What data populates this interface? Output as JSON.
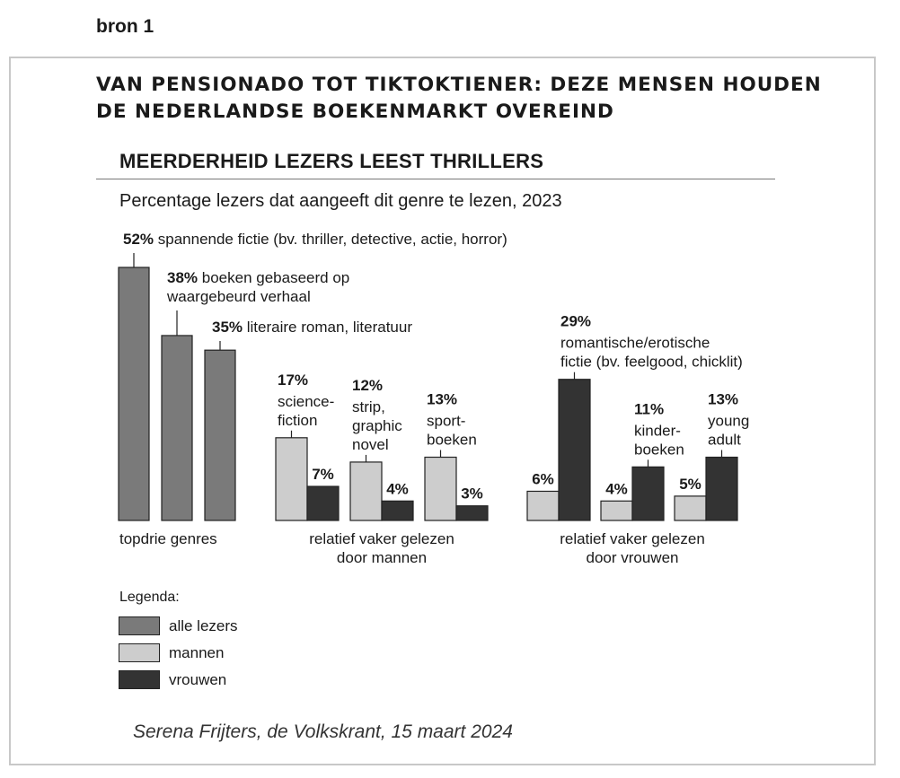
{
  "source_label": "bron 1",
  "headline": "VAN PENSIONADO TOT TIKTOKTIENER: DEZE MENSEN HOUDEN DE NEDERLANDSE BOEKENMARKT OVEREIND",
  "chart_data": {
    "type": "bar",
    "title": "MEERDERHEID LEZERS LEEST THRILLERS",
    "subtitle": "Percentage lezers dat aangeeft dit genre te lezen, 2023",
    "unit": "%",
    "groups": [
      {
        "label": "topdrie genres",
        "bars": [
          {
            "series": "alle lezers",
            "value": 52,
            "value_label": "52%",
            "genre": [
              "spannende fictie (bv. thriller, detective, actie, horror)"
            ]
          },
          {
            "series": "alle lezers",
            "value": 38,
            "value_label": "38%",
            "genre": [
              "boeken gebaseerd op",
              "waargebeurd verhaal"
            ]
          },
          {
            "series": "alle lezers",
            "value": 35,
            "value_label": "35%",
            "genre": [
              "literaire roman, literatuur"
            ]
          }
        ]
      },
      {
        "label": "relatief vaker gelezen door mannen",
        "label_lines": [
          "relatief vaker gelezen",
          "door mannen"
        ],
        "pairs": [
          {
            "genre": [
              "science-",
              "fiction"
            ],
            "mannen": 17,
            "mannen_label": "17%",
            "vrouwen": 7,
            "vrouwen_label": "7%"
          },
          {
            "genre": [
              "strip,",
              "graphic",
              "novel"
            ],
            "mannen": 12,
            "mannen_label": "12%",
            "vrouwen": 4,
            "vrouwen_label": "4%"
          },
          {
            "genre": [
              "sport-",
              "boeken"
            ],
            "mannen": 13,
            "mannen_label": "13%",
            "vrouwen": 3,
            "vrouwen_label": "3%"
          }
        ]
      },
      {
        "label": "relatief vaker gelezen door vrouwen",
        "label_lines": [
          "relatief vaker gelezen",
          "door vrouwen"
        ],
        "pairs": [
          {
            "genre": [
              "romantische/erotische",
              "fictie (bv. feelgood, chicklit)"
            ],
            "mannen": 6,
            "mannen_label": "6%",
            "vrouwen": 29,
            "vrouwen_label": "29%"
          },
          {
            "genre": [
              "kinder-",
              "boeken"
            ],
            "mannen": 4,
            "mannen_label": "4%",
            "vrouwen": 11,
            "vrouwen_label": "11%"
          },
          {
            "genre": [
              "young",
              "adult"
            ],
            "mannen": 5,
            "mannen_label": "5%",
            "vrouwen": 13,
            "vrouwen_label": "13%"
          }
        ]
      }
    ],
    "legend": {
      "title": "Legenda:",
      "items": [
        {
          "label": "alle lezers",
          "color": "#7a7a7a"
        },
        {
          "label": "mannen",
          "color": "#cdcdcd"
        },
        {
          "label": "vrouwen",
          "color": "#333333"
        }
      ]
    },
    "ylim": [
      0,
      52
    ]
  },
  "credit": "Serena Frijters, de Volkskrant, 15 maart 2024"
}
